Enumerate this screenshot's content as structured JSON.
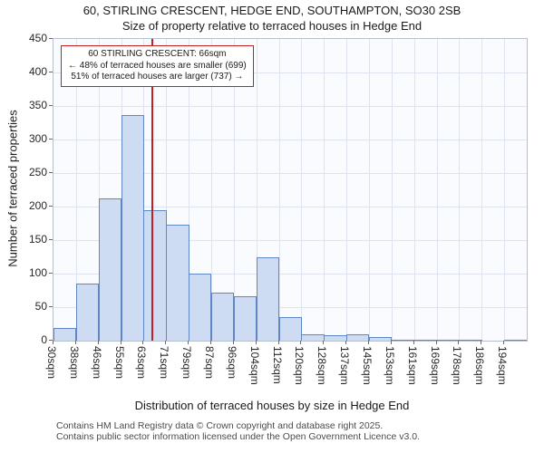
{
  "chart_data": {
    "type": "bar",
    "title": "60, STIRLING CRESCENT, HEDGE END, SOUTHAMPTON, SO30 2SB",
    "subtitle": "Size of property relative to terraced houses in Hedge End",
    "xlabel": "Distribution of terraced houses by size in Hedge End",
    "ylabel": "Number of terraced properties",
    "categories": [
      "30sqm",
      "38sqm",
      "46sqm",
      "55sqm",
      "63sqm",
      "71sqm",
      "79sqm",
      "87sqm",
      "96sqm",
      "104sqm",
      "112sqm",
      "120sqm",
      "128sqm",
      "137sqm",
      "145sqm",
      "153sqm",
      "161sqm",
      "169sqm",
      "178sqm",
      "186sqm",
      "194sqm"
    ],
    "values": [
      19,
      85,
      212,
      337,
      194,
      173,
      100,
      71,
      66,
      124,
      35,
      10,
      8,
      10,
      6,
      2,
      1,
      2,
      1,
      0,
      2
    ],
    "ylim": [
      0,
      450
    ],
    "ytick_step": 50,
    "grid": "on",
    "bar_fill": "#cddcf3",
    "bar_border": "#5f87c5",
    "marker": {
      "value_sqm": 66,
      "color": "#c22121"
    }
  },
  "annotation": {
    "line1": "60 STIRLING CRESCENT: 66sqm",
    "line2": "← 48% of terraced houses are smaller (699)",
    "line3": "51% of terraced houses are larger (737) →"
  },
  "footer": {
    "line1": "Contains HM Land Registry data © Crown copyright and database right 2025.",
    "line2": "Contains public sector information licensed under the Open Government Licence v3.0."
  }
}
